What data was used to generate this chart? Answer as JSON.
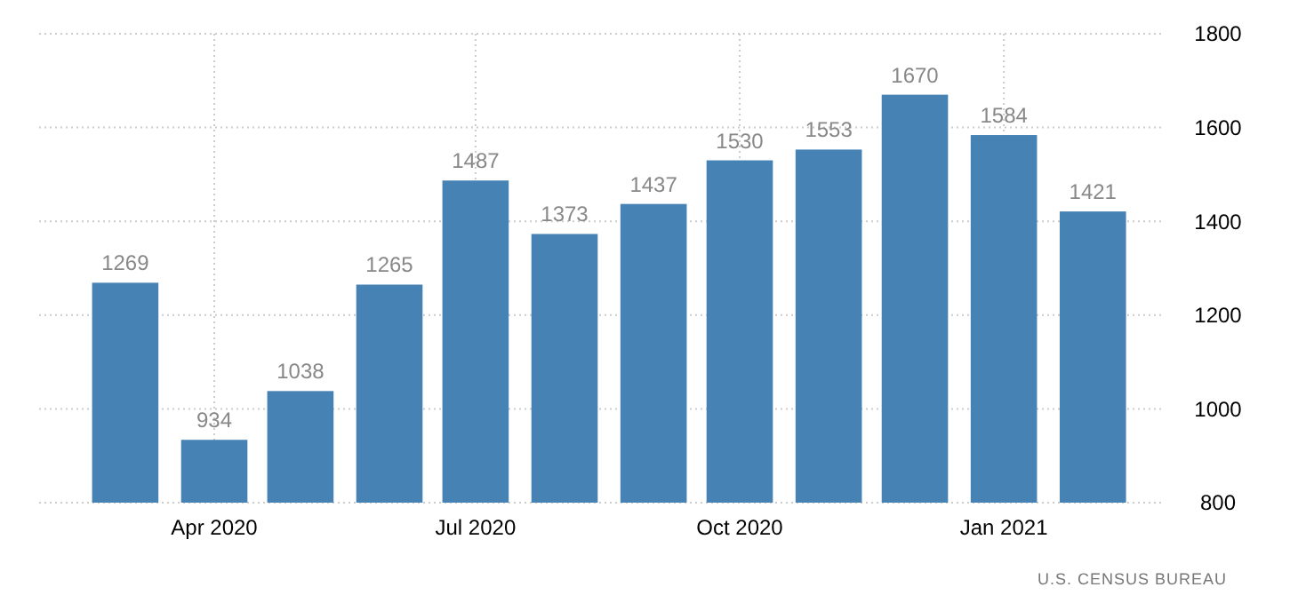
{
  "chart_data": {
    "type": "bar",
    "x": [
      "2020-03",
      "2020-04",
      "2020-05",
      "2020-06",
      "2020-07",
      "2020-08",
      "2020-09",
      "2020-10",
      "2020-11",
      "2020-12",
      "2021-01",
      "2021-02"
    ],
    "values": [
      1269,
      934,
      1038,
      1265,
      1487,
      1373,
      1437,
      1530,
      1553,
      1670,
      1584,
      1421
    ],
    "color": "#4682b4",
    "data_labels": true,
    "xlim": [
      "2020-01-31",
      "2021-02-26"
    ],
    "xticks": [
      {
        "value": "2020-04-01",
        "label": "Apr 2020"
      },
      {
        "value": "2020-07-01",
        "label": "Jul 2020"
      },
      {
        "value": "2020-10-01",
        "label": "Oct 2020"
      },
      {
        "value": "2021-01-01",
        "label": "Jan 2021"
      }
    ],
    "ylim": [
      800,
      1800
    ],
    "yticks": [
      800,
      1000,
      1200,
      1400,
      1600,
      1800
    ],
    "grid": true,
    "annotations": [
      "U.S. CENSUS BUREAU"
    ]
  }
}
